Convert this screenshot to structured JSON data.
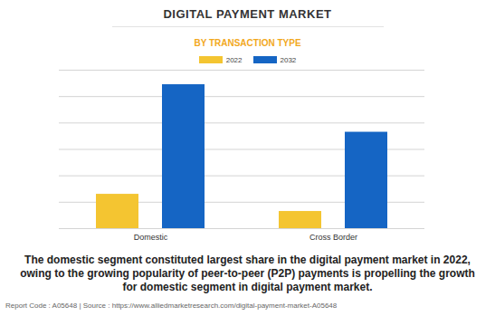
{
  "chart_data": {
    "type": "bar",
    "title": "DIGITAL PAYMENT MARKET",
    "subtitle": "BY TRANSACTION TYPE",
    "categories": [
      "Domestic",
      "Cross Border"
    ],
    "series": [
      {
        "name": "2022",
        "color": "#f4c531",
        "values": [
          1.3,
          0.65
        ]
      },
      {
        "name": "2032",
        "color": "#1565c4",
        "values": [
          5.45,
          3.65
        ]
      }
    ],
    "ylim": [
      0,
      6
    ],
    "yticks": [
      0,
      1,
      2,
      3,
      4,
      5,
      6
    ],
    "grid": true,
    "tick_labels": "x",
    "legend": "top",
    "annotations": [
      "The domestic segment constituted largest share in the digital payment market in 2022, owing to the growing popularity of peer-to-peer (P2P) payments is propelling the growth for domestic segment in digital payment market.",
      "Report Code : A05648  |  Source : https://www.alliedmarketresearch.com/digital-payment-market-A05648"
    ]
  }
}
